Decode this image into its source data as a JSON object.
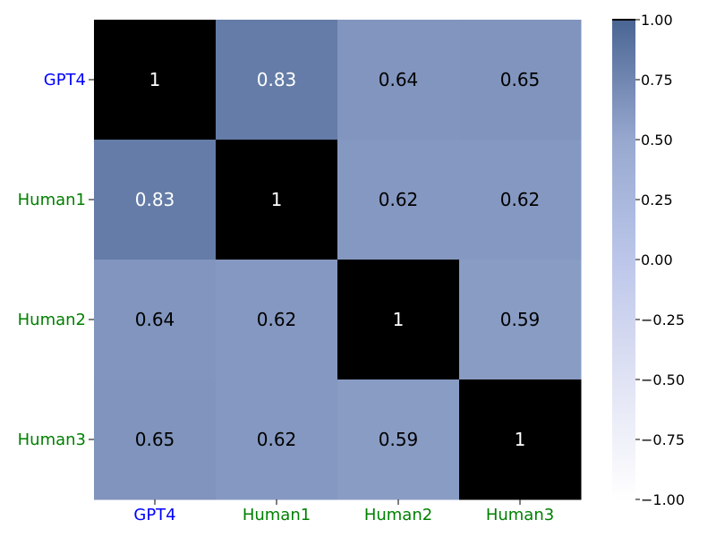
{
  "chart_data": {
    "type": "heatmap",
    "title": "",
    "xlabel": "",
    "ylabel": "",
    "rows": [
      "GPT4",
      "Human1",
      "Human2",
      "Human3"
    ],
    "cols": [
      "GPT4",
      "Human1",
      "Human2",
      "Human3"
    ],
    "row_label_colors": [
      "#0000ff",
      "#008000",
      "#008000",
      "#008000"
    ],
    "col_label_colors": [
      "#0000ff",
      "#008000",
      "#008000",
      "#008000"
    ],
    "values": [
      [
        1,
        0.83,
        0.64,
        0.65
      ],
      [
        0.83,
        1,
        0.62,
        0.62
      ],
      [
        0.64,
        0.62,
        1,
        0.59
      ],
      [
        0.65,
        0.62,
        0.59,
        1
      ]
    ],
    "annotations": [
      [
        "1",
        "0.83",
        "0.64",
        "0.65"
      ],
      [
        "0.83",
        "1",
        "0.62",
        "0.62"
      ],
      [
        "0.64",
        "0.62",
        "1",
        "0.59"
      ],
      [
        "0.65",
        "0.62",
        "0.59",
        "1"
      ]
    ],
    "diagonal_color": "#000000",
    "colorbar": {
      "vmin": -1,
      "vmax": 1,
      "ticks": [
        1.0,
        0.75,
        0.5,
        0.25,
        0.0,
        -0.25,
        -0.5,
        -0.75,
        -1.0
      ],
      "tick_labels": [
        "1.00",
        "0.75",
        "0.50",
        "0.25",
        "0.00",
        "−0.25",
        "−0.50",
        "−0.75",
        "−1.00"
      ],
      "colors": [
        "#ffffff",
        "#e0e3f4",
        "#bcc6ea",
        "#97a8cf",
        "#4a6593"
      ]
    }
  }
}
